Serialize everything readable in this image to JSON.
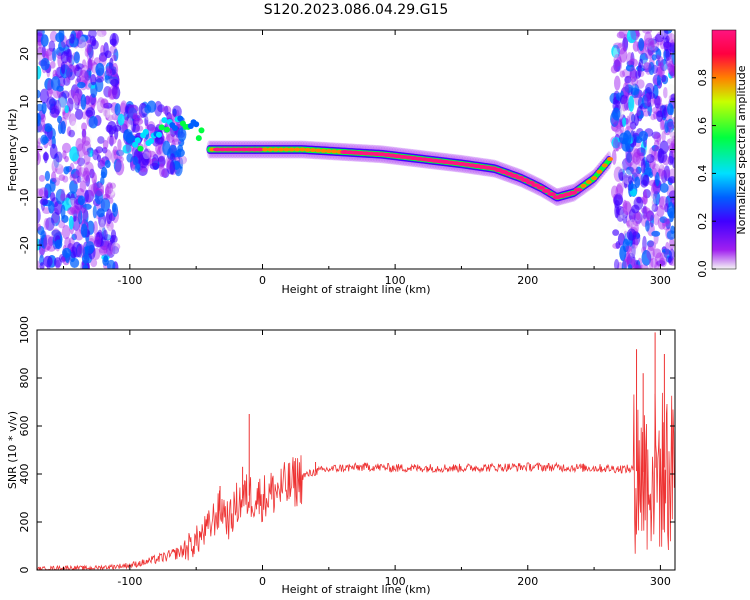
{
  "title": "S120.2023.086.04.29.G15",
  "colors": {
    "snr_line": "#ee3333",
    "colormap": [
      "#f5f5f5",
      "#a020f0",
      "#4000ff",
      "#0060ff",
      "#00e0ff",
      "#00ff40",
      "#c8ff00",
      "#ff8000",
      "#ff0040",
      "#ff1480"
    ]
  },
  "chart_data": [
    {
      "type": "heatmap",
      "xlabel": "Height of straight line (km)",
      "ylabel": "Frequency (Hz)",
      "xlim": [
        -170,
        311
      ],
      "ylim": [
        -25,
        25
      ],
      "xticks": [
        -100,
        0,
        100,
        200,
        300
      ],
      "yticks": [
        -20,
        -10,
        0,
        10,
        20
      ],
      "xtick_labels": [
        "-100",
        "0",
        "100",
        "200",
        "300"
      ],
      "ytick_labels": [
        "-20",
        "-10",
        "0",
        "10",
        "20"
      ],
      "colorbar": {
        "label": "Normalized spectral amplitude",
        "range": [
          0,
          1
        ],
        "ticks": [
          0.0,
          0.2,
          0.4,
          0.6,
          0.8
        ],
        "tick_labels": [
          "0.0",
          "0.2",
          "0.4",
          "0.6",
          "0.8"
        ]
      },
      "ridge": {
        "description_values": "approximate dominant-frequency track (x km, y Hz)",
        "points": [
          [
            -95,
            1
          ],
          [
            -85,
            3
          ],
          [
            -75,
            5
          ],
          [
            -65,
            6
          ],
          [
            -55,
            5
          ],
          [
            -45,
            3
          ],
          [
            -40,
            0
          ],
          [
            -20,
            0
          ],
          [
            0,
            0
          ],
          [
            30,
            0
          ],
          [
            60,
            -0.5
          ],
          [
            90,
            -1
          ],
          [
            120,
            -2
          ],
          [
            150,
            -3
          ],
          [
            175,
            -4
          ],
          [
            195,
            -6
          ],
          [
            210,
            -8
          ],
          [
            222,
            -10
          ],
          [
            235,
            -9
          ],
          [
            250,
            -6
          ],
          [
            262,
            -2
          ]
        ]
      }
    },
    {
      "type": "line",
      "xlabel": "Height of straight line (km)",
      "ylabel": "SNR (10 * v/v)",
      "xlim": [
        -170,
        311
      ],
      "ylim": [
        0,
        1000
      ],
      "xticks": [
        -100,
        0,
        100,
        200,
        300
      ],
      "yticks": [
        0,
        200,
        400,
        600,
        800,
        1000
      ],
      "xtick_labels": [
        "-100",
        "0",
        "100",
        "200",
        "300"
      ],
      "ytick_labels": [
        "0",
        "200",
        "400",
        "600",
        "800",
        "1000"
      ],
      "series": [
        {
          "points": [
            [
              -170,
              5
            ],
            [
              -150,
              10
            ],
            [
              -130,
              8
            ],
            [
              -110,
              15
            ],
            [
              -100,
              20
            ],
            [
              -90,
              30
            ],
            [
              -80,
              45
            ],
            [
              -70,
              60
            ],
            [
              -60,
              80
            ],
            [
              -50,
              120
            ],
            [
              -40,
              180
            ],
            [
              -35,
              230
            ],
            [
              -30,
              260
            ],
            [
              -25,
              200
            ],
            [
              -20,
              270
            ],
            [
              -15,
              300
            ],
            [
              -10,
              310
            ],
            [
              0,
              300
            ],
            [
              10,
              330
            ],
            [
              20,
              350
            ],
            [
              30,
              390
            ],
            [
              40,
              410
            ],
            [
              50,
              420
            ],
            [
              60,
              425
            ],
            [
              80,
              430
            ],
            [
              100,
              425
            ],
            [
              150,
              425
            ],
            [
              200,
              430
            ],
            [
              250,
              425
            ],
            [
              280,
              420
            ],
            [
              285,
              400
            ],
            [
              290,
              420
            ],
            [
              300,
              430
            ],
            [
              311,
              420
            ]
          ],
          "spikes": [
            [
              -32,
              350
            ],
            [
              -15,
              430
            ],
            [
              -10,
              650
            ],
            [
              40,
              450
            ],
            [
              282,
              920
            ],
            [
              287,
              820
            ],
            [
              296,
              990
            ],
            [
              303,
              900
            ]
          ]
        }
      ]
    }
  ]
}
